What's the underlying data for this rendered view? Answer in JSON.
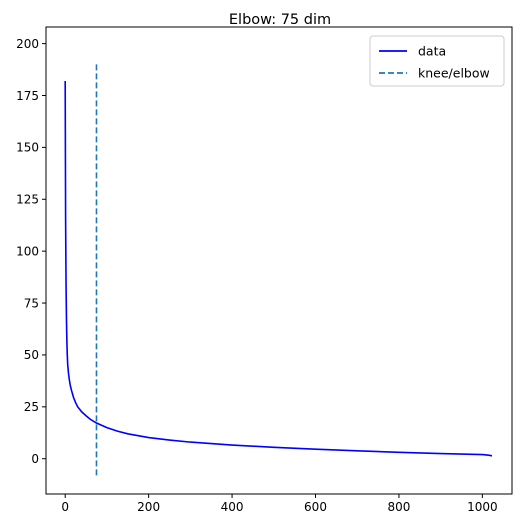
{
  "chart_data": {
    "type": "line",
    "title": "Elbow: 75 dim",
    "xlabel": "",
    "ylabel": "",
    "xlim": [
      -46,
      1071
    ],
    "ylim": [
      -17,
      208
    ],
    "xticks": [
      0,
      200,
      400,
      600,
      800,
      1000
    ],
    "yticks": [
      0,
      25,
      50,
      75,
      100,
      125,
      150,
      175,
      200
    ],
    "grid": false,
    "legend_position": "top-right",
    "series": [
      {
        "name": "data",
        "style": "solid",
        "color": "#0000ff",
        "x": [
          0,
          1,
          2,
          3,
          4,
          5,
          6,
          8,
          10,
          12,
          15,
          20,
          25,
          30,
          40,
          50,
          60,
          75,
          100,
          125,
          150,
          200,
          250,
          300,
          400,
          500,
          600,
          700,
          800,
          900,
          1000,
          1015,
          1023
        ],
        "y": [
          182,
          115,
          85,
          68,
          57,
          50,
          45.5,
          41,
          38,
          35.5,
          33,
          29.5,
          27,
          25,
          22.5,
          20.7,
          19,
          17.2,
          15,
          13.3,
          12,
          10.2,
          9,
          8,
          6.6,
          5.5,
          4.6,
          3.8,
          3.1,
          2.5,
          2.0,
          1.7,
          1.4
        ]
      },
      {
        "name": "knee/elbow",
        "style": "dashed",
        "color": "#1f77b4",
        "x": [
          75,
          75
        ],
        "y": [
          -8,
          191
        ]
      }
    ]
  }
}
